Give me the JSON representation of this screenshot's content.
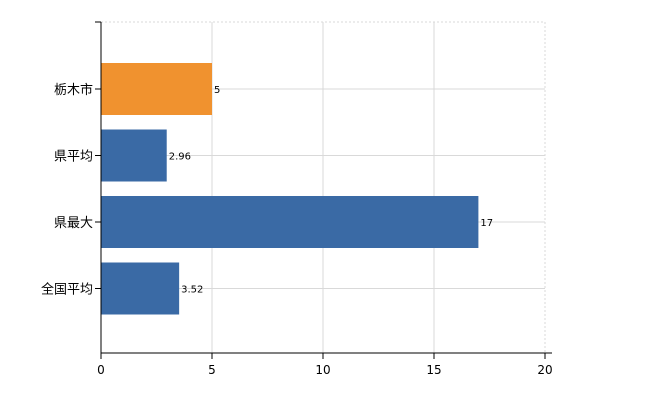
{
  "chart_data": {
    "type": "bar",
    "orientation": "horizontal",
    "categories": [
      "栃木市",
      "県平均",
      "県最大",
      "全国平均"
    ],
    "values": [
      5,
      2.96,
      17,
      3.52
    ],
    "data_labels": [
      "5",
      "2.96",
      "17",
      "3.52"
    ],
    "bar_colors": [
      "#f0922f",
      "#3a6aa5",
      "#3a6aa5",
      "#3a6aa5"
    ],
    "title": "",
    "xlabel": "",
    "ylabel": "",
    "xlim": [
      0,
      20
    ],
    "x_ticks": [
      0,
      5,
      10,
      15,
      20
    ],
    "x_tick_labels": [
      "0",
      "5",
      "10",
      "15",
      "20"
    ],
    "grid": true,
    "legend": "none"
  }
}
